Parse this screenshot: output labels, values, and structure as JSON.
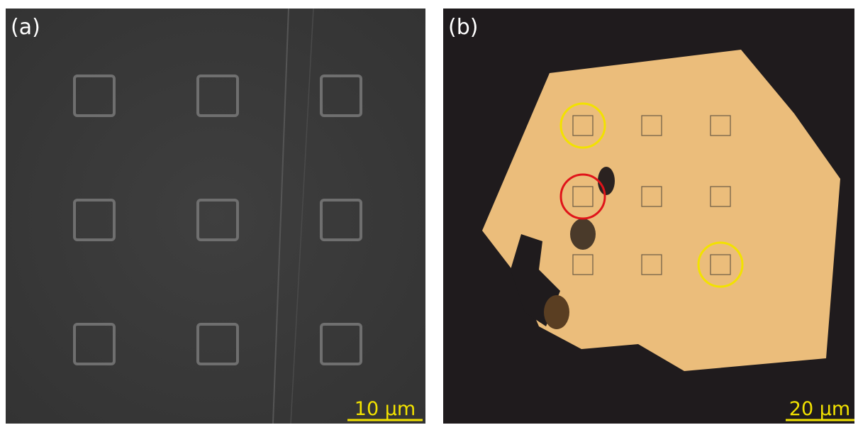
{
  "panels": [
    {
      "label": "(a)",
      "scale_bar": "10 μm"
    },
    {
      "label": "(b)",
      "scale_bar": "20 μm"
    }
  ]
}
